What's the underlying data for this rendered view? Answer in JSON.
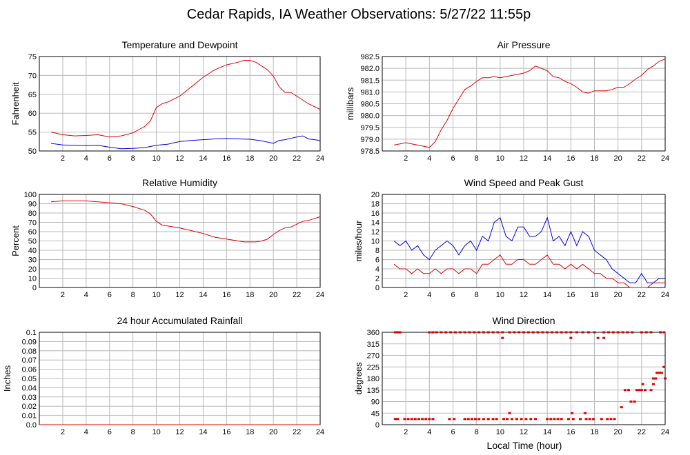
{
  "page_title": "Cedar Rapids, IA Weather Observations: 5/27/22 11:55p",
  "x_axis_label": "Local Time (hour)",
  "colors": {
    "red": "#e00000",
    "blue": "#0000e0",
    "grid": "#b8b8b8",
    "frame": "#000000"
  },
  "chart_data": [
    {
      "id": "temp",
      "type": "line",
      "title": "Temperature and Dewpoint",
      "xlabel": "",
      "ylabel": "Fahrenheit",
      "xlim": [
        0,
        24
      ],
      "ylim": [
        50,
        75
      ],
      "xticks": [
        2,
        4,
        6,
        8,
        10,
        12,
        14,
        16,
        18,
        20,
        22,
        24
      ],
      "yticks": [
        50,
        55,
        60,
        65,
        70,
        75
      ],
      "grid": true,
      "series": [
        {
          "color": "red",
          "x": [
            1,
            2,
            3,
            4,
            5,
            6,
            7,
            8,
            9,
            9.5,
            10,
            10.5,
            11,
            12,
            13,
            14,
            15,
            16,
            17,
            17.5,
            18,
            18.5,
            19,
            19.5,
            20,
            20.5,
            21,
            21.5,
            22,
            22.5,
            23,
            24
          ],
          "values": [
            55,
            54.3,
            54,
            54.1,
            54.3,
            53.7,
            54,
            54.8,
            56.5,
            58,
            61.5,
            62.5,
            63,
            64.5,
            67,
            69.5,
            71.5,
            72.8,
            73.5,
            74,
            74,
            73.5,
            72.5,
            71.5,
            69.8,
            67,
            65.5,
            65.5,
            64.5,
            63.5,
            62.5,
            61
          ]
        },
        {
          "color": "blue",
          "x": [
            1,
            2,
            3,
            4,
            5,
            6,
            7,
            8,
            9,
            10,
            11,
            12,
            13,
            14,
            15,
            16,
            17,
            18,
            19,
            20,
            20.5,
            21,
            22,
            22.5,
            23,
            24
          ],
          "values": [
            52,
            51.6,
            51.5,
            51.4,
            51.5,
            51,
            50.6,
            50.7,
            50.9,
            51.5,
            51.8,
            52.5,
            52.8,
            53,
            53.2,
            53.3,
            53.2,
            53.1,
            52.7,
            52,
            52.8,
            53,
            53.7,
            54,
            53.2,
            52.8
          ]
        }
      ]
    },
    {
      "id": "pressure",
      "type": "line",
      "title": "Air Pressure",
      "xlabel": "",
      "ylabel": "millibars",
      "xlim": [
        0,
        24
      ],
      "ylim": [
        978.5,
        982.5
      ],
      "xticks": [
        2,
        4,
        6,
        8,
        10,
        12,
        14,
        16,
        18,
        20,
        22,
        24
      ],
      "yticks": [
        978.5,
        979.0,
        979.5,
        980.0,
        980.5,
        981.0,
        981.5,
        982.0,
        982.5
      ],
      "ytick_labels": [
        "978.5",
        "979.0",
        "979.5",
        "980.0",
        "980.5",
        "981.0",
        "981.5",
        "982.0",
        "982.5"
      ],
      "grid": true,
      "series": [
        {
          "color": "red",
          "x": [
            1,
            1.5,
            2,
            2.5,
            3,
            3.5,
            4,
            4.5,
            5,
            5.5,
            6,
            6.5,
            7,
            7.5,
            8,
            8.5,
            9,
            9.5,
            10,
            10.5,
            11,
            11.5,
            12,
            12.5,
            13,
            13.5,
            14,
            14.5,
            15,
            15.5,
            16,
            16.5,
            17,
            17.5,
            18,
            18.5,
            19,
            19.5,
            20,
            20.5,
            21,
            21.5,
            22,
            22.5,
            23,
            23.5,
            24
          ],
          "values": [
            978.75,
            978.8,
            978.85,
            978.8,
            978.75,
            978.7,
            978.65,
            978.9,
            979.4,
            979.8,
            980.3,
            980.7,
            981.1,
            981.25,
            981.45,
            981.6,
            981.6,
            981.65,
            981.6,
            981.65,
            981.7,
            981.75,
            981.8,
            981.9,
            982.1,
            982.0,
            981.9,
            981.65,
            981.6,
            981.45,
            981.35,
            981.2,
            981.0,
            980.95,
            981.05,
            981.05,
            981.05,
            981.1,
            981.2,
            981.2,
            981.35,
            981.55,
            981.7,
            981.95,
            982.1,
            982.3,
            982.4
          ]
        }
      ]
    },
    {
      "id": "humidity",
      "type": "line",
      "title": "Relative Humidity",
      "xlabel": "",
      "ylabel": "Percent",
      "xlim": [
        0,
        24
      ],
      "ylim": [
        0,
        100
      ],
      "xticks": [
        2,
        4,
        6,
        8,
        10,
        12,
        14,
        16,
        18,
        20,
        22,
        24
      ],
      "yticks": [
        0,
        10,
        20,
        30,
        40,
        50,
        60,
        70,
        80,
        90,
        100
      ],
      "grid": true,
      "series": [
        {
          "color": "red",
          "x": [
            1,
            2,
            3,
            4,
            5,
            6,
            7,
            8,
            9,
            9.5,
            10,
            10.5,
            11,
            12,
            13,
            14,
            15,
            16,
            17,
            17.5,
            18,
            18.5,
            19,
            19.5,
            20,
            20.5,
            21,
            21.5,
            22,
            22.5,
            23,
            24
          ],
          "values": [
            92,
            93,
            93,
            93,
            92,
            91,
            90,
            87,
            83,
            79,
            71,
            67,
            66,
            64,
            61,
            58,
            54,
            52,
            50,
            49,
            49,
            49,
            50,
            52,
            57,
            61,
            64,
            65,
            68,
            71,
            72,
            76
          ]
        }
      ]
    },
    {
      "id": "wind",
      "type": "line",
      "title": "Wind Speed and Peak Gust",
      "xlabel": "",
      "ylabel": "miles/hour",
      "xlim": [
        0,
        24
      ],
      "ylim": [
        0,
        20
      ],
      "xticks": [
        2,
        4,
        6,
        8,
        10,
        12,
        14,
        16,
        18,
        20,
        22,
        24
      ],
      "yticks": [
        0,
        2,
        4,
        6,
        8,
        10,
        12,
        14,
        16,
        18,
        20
      ],
      "grid": true,
      "series": [
        {
          "color": "blue",
          "x": [
            1,
            1.5,
            2,
            2.5,
            3,
            3.5,
            4,
            4.5,
            5,
            5.5,
            6,
            6.5,
            7,
            7.5,
            8,
            8.5,
            9,
            9.5,
            10,
            10.5,
            11,
            11.5,
            12,
            12.5,
            13,
            13.5,
            14,
            14.5,
            15,
            15.5,
            16,
            16.5,
            17,
            17.5,
            18,
            18.5,
            19,
            19.5,
            20,
            20.5,
            21,
            21.5,
            22,
            22.5,
            23,
            23.5,
            24
          ],
          "values": [
            10,
            9,
            10,
            8,
            9,
            7,
            6,
            8,
            9,
            10,
            9,
            7,
            9,
            10,
            8,
            11,
            10,
            14,
            15,
            11,
            10,
            13,
            13,
            11,
            11,
            12,
            15,
            10,
            11,
            9,
            12,
            9,
            12,
            11,
            8,
            7,
            6,
            4,
            3,
            2,
            1,
            1,
            3,
            1,
            1,
            2,
            2
          ]
        },
        {
          "color": "red",
          "x": [
            1,
            1.5,
            2,
            2.5,
            3,
            3.5,
            4,
            4.5,
            5,
            5.5,
            6,
            6.5,
            7,
            7.5,
            8,
            8.5,
            9,
            9.5,
            10,
            10.5,
            11,
            11.5,
            12,
            12.5,
            13,
            13.5,
            14,
            14.5,
            15,
            15.5,
            16,
            16.5,
            17,
            17.5,
            18,
            18.5,
            19,
            19.5,
            20,
            20.5,
            21,
            21.5,
            22,
            22.5,
            23,
            23.5,
            24
          ],
          "values": [
            5,
            4,
            4,
            3,
            4,
            3,
            3,
            4,
            3,
            4,
            4,
            3,
            4,
            4,
            3,
            5,
            5,
            6,
            7,
            5,
            5,
            6,
            6,
            5,
            5,
            6,
            7,
            5,
            5,
            4,
            5,
            4,
            5,
            4,
            3,
            3,
            2,
            2,
            1,
            1,
            0,
            0,
            0,
            0,
            1,
            1,
            1
          ]
        }
      ]
    },
    {
      "id": "rain",
      "type": "line",
      "title": "24 hour Accumulated Rainfall",
      "xlabel": "",
      "ylabel": "Inches",
      "xlim": [
        0,
        24
      ],
      "ylim": [
        0,
        0.1
      ],
      "xticks": [
        2,
        4,
        6,
        8,
        10,
        12,
        14,
        16,
        18,
        20,
        22,
        24
      ],
      "yticks": [
        0,
        0.01,
        0.02,
        0.03,
        0.04,
        0.05,
        0.06,
        0.07,
        0.08,
        0.09,
        0.1
      ],
      "ytick_labels": [
        "0.0",
        "0.01",
        "0.02",
        "0.03",
        "0.04",
        "0.05",
        "0.06",
        "0.07",
        "0.08",
        "0.09",
        "0.1"
      ],
      "grid": true,
      "series": [
        {
          "color": "red",
          "x": [
            0,
            24
          ],
          "values": [
            0,
            0
          ]
        }
      ]
    },
    {
      "id": "direction",
      "type": "scatter",
      "title": "Wind Direction",
      "xlabel": "Local Time (hour)",
      "ylabel": "degrees",
      "xlim": [
        0,
        24
      ],
      "ylim": [
        0,
        360
      ],
      "xticks": [
        2,
        4,
        6,
        8,
        10,
        12,
        14,
        16,
        18,
        20,
        22,
        24
      ],
      "yticks": [
        0,
        45,
        90,
        135,
        180,
        225,
        270,
        315,
        360
      ],
      "grid": true,
      "series": [
        {
          "color": "red",
          "x": [
            1.1,
            1.3,
            1.5,
            4.0,
            4.3,
            4.6,
            5.0,
            5.4,
            5.8,
            6.2,
            6.6,
            7.0,
            7.4,
            7.8,
            8.2,
            8.6,
            9.0,
            9.4,
            9.8,
            10.2,
            10.8,
            11.2,
            11.6,
            12.0,
            12.4,
            12.8,
            13.2,
            13.6,
            14.0,
            14.4,
            14.8,
            15.2,
            15.6,
            16.0,
            16.5,
            17.0,
            17.5,
            18.0,
            18.8,
            19.2,
            19.6,
            20.0,
            20.4,
            20.8,
            21.2,
            22.0,
            22.4,
            22.8,
            23.6,
            23.9,
            10.2,
            16.0,
            18.3,
            18.8
          ],
          "values": [
            360,
            360,
            360,
            360,
            360,
            360,
            360,
            360,
            360,
            360,
            360,
            360,
            360,
            360,
            360,
            360,
            360,
            360,
            360,
            360,
            360,
            360,
            360,
            360,
            360,
            360,
            360,
            360,
            360,
            360,
            360,
            360,
            360,
            360,
            360,
            360,
            360,
            360,
            360,
            360,
            360,
            360,
            360,
            360,
            360,
            360,
            360,
            360,
            360,
            360,
            338,
            338,
            338,
            338
          ]
        },
        {
          "color": "red",
          "x": [
            1.1,
            1.3,
            1.9,
            2.2,
            2.5,
            2.8,
            3.1,
            3.4,
            3.7,
            4.0,
            4.3,
            5.7,
            6.1,
            7.0,
            7.3,
            7.6,
            7.9,
            8.2,
            8.6,
            9.0,
            9.4,
            9.7,
            10.3,
            10.6,
            11.0,
            11.4,
            11.8,
            12.2,
            12.6,
            13.0,
            14.0,
            14.3,
            14.6,
            14.9,
            15.2,
            15.8,
            16.2,
            16.8,
            17.3,
            17.6,
            17.9,
            18.6,
            19.1,
            19.4,
            19.7,
            10.8,
            16.1,
            17.2
          ],
          "values": [
            22,
            22,
            22,
            22,
            22,
            22,
            22,
            22,
            22,
            22,
            22,
            22,
            22,
            22,
            22,
            22,
            22,
            22,
            22,
            22,
            22,
            22,
            22,
            22,
            22,
            22,
            22,
            22,
            22,
            22,
            22,
            22,
            22,
            22,
            22,
            22,
            22,
            22,
            22,
            22,
            22,
            22,
            22,
            22,
            22,
            45,
            45,
            45
          ]
        },
        {
          "color": "red",
          "x": [
            20.3,
            20.6,
            20.9,
            21.1,
            21.4,
            21.6,
            21.8,
            22.0,
            22.1,
            22.3,
            22.8,
            23.0,
            23.3,
            23.5,
            23.7,
            23.9,
            24.0,
            23.0,
            23.2
          ],
          "values": [
            68,
            135,
            135,
            90,
            90,
            135,
            135,
            135,
            158,
            135,
            135,
            180,
            202,
            202,
            202,
            225,
            180,
            158,
            180
          ]
        }
      ]
    }
  ]
}
